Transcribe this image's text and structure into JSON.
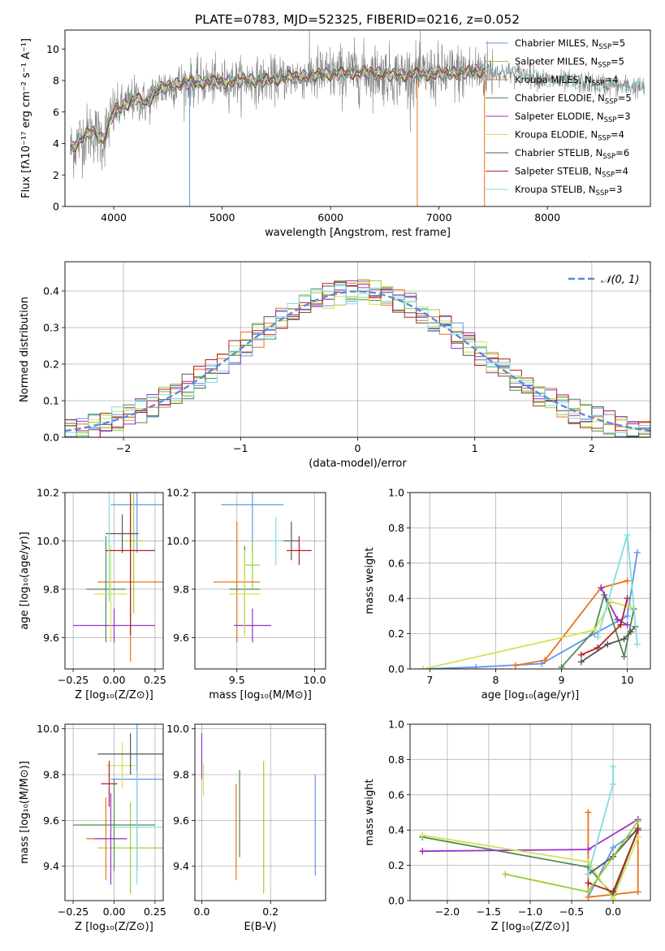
{
  "figure": {
    "title": "PLATE=0783, MJD=52325, FIBERID=0216, z=0.052"
  },
  "models": [
    {
      "name": "Chabrier MILES",
      "nssp": "5",
      "color": "#6495ED"
    },
    {
      "name": "Salpeter MILES",
      "nssp": "5",
      "color": "#9ACD32"
    },
    {
      "name": "Kroupa MILES",
      "nssp": "4",
      "color": "#E8731A"
    },
    {
      "name": "Chabrier ELODIE",
      "nssp": "5",
      "color": "#4E8B4E"
    },
    {
      "name": "Salpeter ELODIE",
      "nssp": "3",
      "color": "#9932CC"
    },
    {
      "name": "Kroupa ELODIE",
      "nssp": "4",
      "color": "#D4E157"
    },
    {
      "name": "Chabrier STELIB",
      "nssp": "6",
      "color": "#555555"
    },
    {
      "name": "Salpeter STELIB",
      "nssp": "4",
      "color": "#B22222"
    },
    {
      "name": "Kroupa STELIB",
      "nssp": "3",
      "color": "#7FDEDE"
    }
  ],
  "chart_data": [
    {
      "id": "spectrum",
      "type": "line",
      "xlabel": "wavelength [Angstrom, rest frame]",
      "ylabel": "Flux [fλ10⁻¹⁷ erg cm⁻² s⁻¹ A⁻¹]",
      "xlim": [
        3550,
        8950
      ],
      "ylim": [
        0,
        11.2
      ],
      "xticks": [
        "4000",
        "5000",
        "6000",
        "7000",
        "8000"
      ],
      "yticks": [
        "0",
        "2",
        "4",
        "6",
        "8",
        "10"
      ],
      "legend": "upper-right",
      "grid": false,
      "continuum": {
        "x": [
          3600,
          3700,
          3800,
          3900,
          4000,
          4100,
          4200,
          4300,
          4400,
          4500,
          4600,
          4800,
          5000,
          5200,
          5400,
          5600,
          5800,
          6000,
          6200,
          6400,
          6600,
          6800,
          7000,
          7200,
          7400,
          7600,
          7800,
          8000,
          8200,
          8400,
          8600,
          8800,
          8900
        ],
        "y": [
          3.6,
          4.3,
          4.8,
          4.2,
          6.0,
          6.4,
          6.9,
          6.5,
          7.4,
          7.6,
          7.8,
          7.9,
          7.9,
          8.0,
          8.0,
          8.2,
          8.3,
          8.4,
          8.5,
          8.5,
          8.3,
          8.4,
          8.4,
          8.5,
          8.6,
          8.5,
          8.4,
          8.0,
          7.9,
          7.8,
          7.7,
          7.6,
          7.5
        ]
      }
    },
    {
      "id": "residuals",
      "type": "line",
      "xlabel": "(data-model)/error",
      "ylabel": "Normed distribution",
      "xlim": [
        -2.5,
        2.5
      ],
      "ylim": [
        0,
        0.48
      ],
      "xticks": [
        "−2",
        "−1",
        "0",
        "1",
        "2"
      ],
      "yticks": [
        "0.0",
        "0.1",
        "0.2",
        "0.3",
        "0.4"
      ],
      "grid": true,
      "legend": "upper-right",
      "reference": {
        "name": "𝒩(0, 1)",
        "mean": 0,
        "sigma": 1
      },
      "bin_width": 0.1
    },
    {
      "id": "age-vs-Z",
      "type": "scatter",
      "xlabel": "Z [log₁₀(Z/Z⊙)]",
      "ylabel": "age  [log₁₀(age/yr)]",
      "xlim": [
        -0.3,
        0.3
      ],
      "ylim": [
        9.47,
        10.2
      ],
      "xticks": [
        "−0.25",
        "0.00",
        "0.25"
      ],
      "yticks": [
        "9.6",
        "9.8",
        "10.0",
        "10.2"
      ],
      "grid": true,
      "points": [
        {
          "x": 0.14,
          "y": 10.15,
          "xerr": 0.16,
          "yerr": 0.2
        },
        {
          "x": 0.12,
          "y": 10.0,
          "xerr": 0.06,
          "yerr": 0.3
        },
        {
          "x": 0.1,
          "y": 9.83,
          "xerr": 0.2,
          "yerr": 0.33
        },
        {
          "x": -0.05,
          "y": 9.8,
          "xerr": 0.12,
          "yerr": 0.22
        },
        {
          "x": 0.0,
          "y": 9.65,
          "xerr": 0.25,
          "yerr": 0.07
        },
        {
          "x": -0.02,
          "y": 9.78,
          "xerr": 0.1,
          "yerr": 0.2
        },
        {
          "x": 0.05,
          "y": 10.03,
          "xerr": 0.1,
          "yerr": 0.08
        },
        {
          "x": 0.1,
          "y": 9.96,
          "xerr": 0.15,
          "yerr": 0.35
        },
        {
          "x": -0.03,
          "y": 10.0,
          "xerr": 0.05,
          "yerr": 0.25
        }
      ]
    },
    {
      "id": "age-vs-mass",
      "type": "scatter",
      "xlabel": "mass [log₁₀(M/M⊙)]",
      "ylabel": "",
      "xlim": [
        9.23,
        10.07
      ],
      "ylim": [
        9.47,
        10.2
      ],
      "xticks": [
        "9.5",
        "10.0"
      ],
      "yticks": [
        "9.6",
        "9.8",
        "10.0",
        "10.2"
      ],
      "grid": true,
      "points": [
        {
          "x": 9.6,
          "y": 10.15,
          "xerr": 0.2,
          "yerr": 0.2
        },
        {
          "x": 9.6,
          "y": 9.9,
          "xerr": 0.05,
          "yerr": 0.1
        },
        {
          "x": 9.5,
          "y": 9.83,
          "xerr": 0.15,
          "yerr": 0.25
        },
        {
          "x": 9.55,
          "y": 9.8,
          "xerr": 0.1,
          "yerr": 0.18
        },
        {
          "x": 9.6,
          "y": 9.65,
          "xerr": 0.12,
          "yerr": 0.07
        },
        {
          "x": 9.55,
          "y": 9.78,
          "xerr": 0.1,
          "yerr": 0.18
        },
        {
          "x": 9.85,
          "y": 10.0,
          "xerr": 0.05,
          "yerr": 0.08
        },
        {
          "x": 9.9,
          "y": 9.96,
          "xerr": 0.08,
          "yerr": 0.06
        },
        {
          "x": 9.75,
          "y": 10.0,
          "xerr": 0.03,
          "yerr": 0.1
        }
      ]
    },
    {
      "id": "weight-vs-age",
      "type": "line",
      "xlabel": "age  [log₁₀(age/yr)]",
      "ylabel": "mass weight",
      "xlim": [
        6.7,
        10.35
      ],
      "ylim": [
        0,
        1
      ],
      "xticks": [
        "7",
        "8",
        "9",
        "10"
      ],
      "yticks": [
        "0.0",
        "0.2",
        "0.4",
        "0.6",
        "0.8",
        "1.0"
      ],
      "grid": true,
      "series": [
        {
          "model": 0,
          "x": [
            6.9,
            7.7,
            8.7,
            9.5,
            10.0,
            10.15
          ],
          "y": [
            0,
            0.01,
            0.03,
            0.2,
            0.3,
            0.66
          ]
        },
        {
          "model": 2,
          "x": [
            8.3,
            8.75,
            9.6,
            10.0
          ],
          "y": [
            0.02,
            0.05,
            0.46,
            0.5
          ]
        },
        {
          "model": 3,
          "x": [
            9.0,
            9.5,
            9.65,
            9.95,
            10.1
          ],
          "y": [
            0.01,
            0.22,
            0.42,
            0.07,
            0.34
          ]
        },
        {
          "model": 4,
          "x": [
            9.6,
            9.85,
            10.0
          ],
          "y": [
            0.46,
            0.28,
            0.25
          ]
        },
        {
          "model": 5,
          "x": [
            6.9,
            9.5,
            9.75,
            10.05
          ],
          "y": [
            0,
            0.22,
            0.38,
            0.35
          ]
        },
        {
          "model": 6,
          "x": [
            9.3,
            9.7,
            9.95,
            10.05,
            10.12
          ],
          "y": [
            0.04,
            0.14,
            0.17,
            0.21,
            0.24
          ]
        },
        {
          "model": 7,
          "x": [
            9.3,
            9.55,
            9.9,
            10.0
          ],
          "y": [
            0.08,
            0.12,
            0.25,
            0.4
          ]
        },
        {
          "model": 8,
          "x": [
            9.55,
            10.0,
            10.15
          ],
          "y": [
            0.18,
            0.76,
            0.14
          ]
        }
      ]
    },
    {
      "id": "mass-vs-Z",
      "type": "scatter",
      "xlabel": "Z [log₁₀(Z/Z⊙)]",
      "ylabel": "mass [log₁₀(M/M⊙)]",
      "xlim": [
        -0.3,
        0.3
      ],
      "ylim": [
        9.25,
        10.02
      ],
      "xticks": [
        "−0.25",
        "0.00",
        "0.25"
      ],
      "yticks": [
        "9.4",
        "9.6",
        "9.8",
        "10.0"
      ],
      "grid": true,
      "points": [
        {
          "x": 0.14,
          "y": 9.78,
          "xerr": 0.16,
          "yerr": 0.4
        },
        {
          "x": 0.1,
          "y": 9.48,
          "xerr": 0.2,
          "yerr": 0.2
        },
        {
          "x": -0.05,
          "y": 9.52,
          "xerr": 0.12,
          "yerr": 0.18
        },
        {
          "x": 0.0,
          "y": 9.58,
          "xerr": 0.25,
          "yerr": 0.2
        },
        {
          "x": -0.02,
          "y": 9.52,
          "xerr": 0.1,
          "yerr": 0.2
        },
        {
          "x": 0.05,
          "y": 9.84,
          "xerr": 0.1,
          "yerr": 0.1
        },
        {
          "x": 0.1,
          "y": 9.89,
          "xerr": 0.2,
          "yerr": 0.09
        },
        {
          "x": -0.03,
          "y": 9.76,
          "xerr": 0.05,
          "yerr": 0.1
        },
        {
          "x": 0.14,
          "y": 9.57,
          "xerr": 0.16,
          "yerr": 0.25
        }
      ]
    },
    {
      "id": "mass-vs-ebv",
      "type": "scatter",
      "xlabel": "E(B-V)",
      "ylabel": "",
      "xlim": [
        -0.02,
        0.36
      ],
      "ylim": [
        9.25,
        10.02
      ],
      "xticks": [
        "0.0",
        "0.2"
      ],
      "yticks": [
        "9.4",
        "9.6",
        "9.8",
        "10.0"
      ],
      "grid": true,
      "points": [
        {
          "x": 0.33,
          "y": 9.58,
          "xerr": 0,
          "yerr": 0.22
        },
        {
          "x": 0.18,
          "y": 9.57,
          "xerr": 0,
          "yerr": 0.29
        },
        {
          "x": 0.1,
          "y": 9.55,
          "xerr": 0,
          "yerr": 0.21
        },
        {
          "x": 0.11,
          "y": 9.63,
          "xerr": 0,
          "yerr": 0.19
        },
        {
          "x": 0.0,
          "y": 9.88,
          "xerr": 0,
          "yerr": 0.1
        },
        {
          "x": 0.005,
          "y": 9.78,
          "xerr": 0,
          "yerr": 0.07
        }
      ]
    },
    {
      "id": "weight-vs-Z",
      "type": "line",
      "xlabel": "Z [log₁₀(Z/Z⊙)]",
      "ylabel": "mass weight",
      "xlim": [
        -2.45,
        0.45
      ],
      "ylim": [
        0,
        1
      ],
      "xticks": [
        "−2.0",
        "−1.5",
        "−1.0",
        "−0.5",
        "0.0"
      ],
      "yticks": [
        "0.0",
        "0.2",
        "0.4",
        "0.6",
        "0.8",
        "1.0"
      ],
      "grid": true,
      "series": [
        {
          "model": 0,
          "x": [
            -0.3,
            0.0,
            0.3
          ],
          "y": [
            0.02,
            0.3,
            0.4
          ]
        },
        {
          "model": 2,
          "x": [
            -0.3,
            -0.3,
            0.3,
            0.3
          ],
          "y": [
            0.5,
            0.02,
            0.05,
            0.46
          ]
        },
        {
          "model": 3,
          "x": [
            -2.3,
            -0.3,
            0.0,
            0.3
          ],
          "y": [
            0.36,
            0.19,
            0.03,
            0.4
          ]
        },
        {
          "model": 4,
          "x": [
            -2.3,
            -0.3,
            0.3
          ],
          "y": [
            0.28,
            0.29,
            0.46
          ]
        },
        {
          "model": 5,
          "x": [
            -2.3,
            -0.3,
            0.0,
            0.3
          ],
          "y": [
            0.37,
            0.22,
            0.01,
            0.36
          ]
        },
        {
          "model": 6,
          "x": [
            -0.3,
            0.0,
            0.3
          ],
          "y": [
            0.15,
            0.25,
            0.41
          ]
        },
        {
          "model": 7,
          "x": [
            -0.3,
            0.0,
            0.3
          ],
          "y": [
            0.1,
            0.05,
            0.4
          ]
        },
        {
          "model": 8,
          "x": [
            0.0,
            0.0,
            -0.3
          ],
          "y": [
            0.76,
            0.66,
            0.15
          ]
        },
        {
          "model": 1,
          "x": [
            -1.3,
            -0.3,
            0.3
          ],
          "y": [
            0.15,
            0.05,
            0.45
          ]
        }
      ]
    }
  ]
}
